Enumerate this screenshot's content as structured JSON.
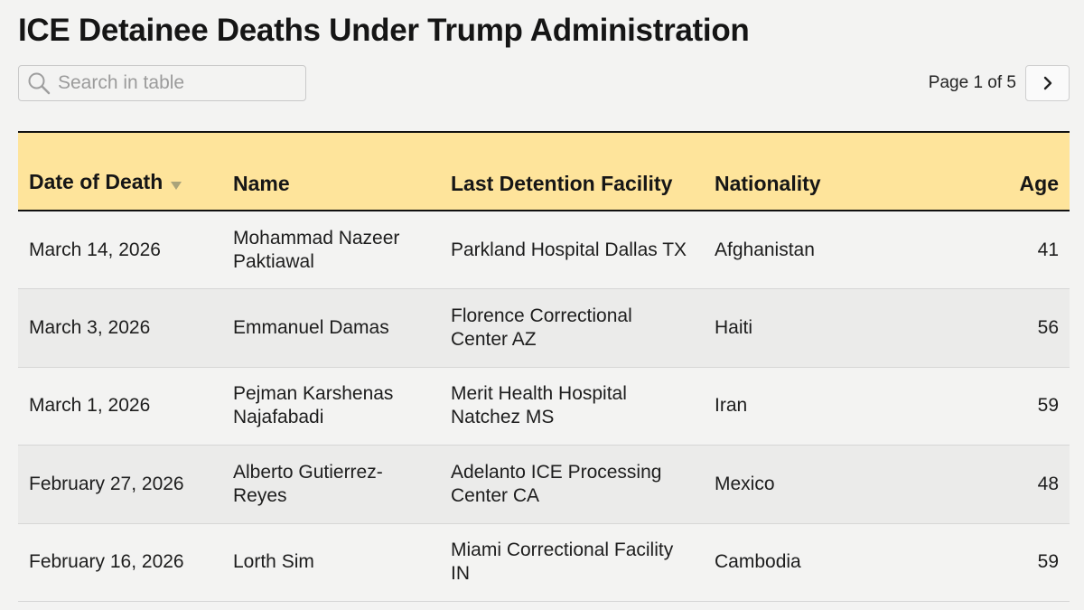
{
  "title": "ICE Detainee Deaths Under Trump Administration",
  "search": {
    "placeholder": "Search in table",
    "value": "",
    "icon": "search-icon"
  },
  "pagination": {
    "label": "Page 1 of 5",
    "next_icon": "chevron-right-icon"
  },
  "table": {
    "columns": [
      {
        "key": "date",
        "label": "Date of Death",
        "sorted": "descending"
      },
      {
        "key": "name",
        "label": "Name"
      },
      {
        "key": "facility",
        "label": "Last Detention Facility"
      },
      {
        "key": "nationality",
        "label": "Nationality"
      },
      {
        "key": "age",
        "label": "Age"
      }
    ],
    "rows": [
      {
        "date": "March 14, 2026",
        "name": "Mohammad Nazeer Paktiawal",
        "facility": "Parkland Hospital Dallas TX",
        "nationality": "Afghanistan",
        "age": "41"
      },
      {
        "date": "March 3, 2026",
        "name": "Emmanuel Damas",
        "facility": "Florence Correctional Center AZ",
        "nationality": "Haiti",
        "age": "56"
      },
      {
        "date": "March 1, 2026",
        "name": "Pejman Karshenas Najafabadi",
        "facility": "Merit Health Hospital Natchez MS",
        "nationality": "Iran",
        "age": "59"
      },
      {
        "date": "February 27, 2026",
        "name": "Alberto Gutierrez-Reyes",
        "facility": "Adelanto ICE Processing Center CA",
        "nationality": "Mexico",
        "age": "48"
      },
      {
        "date": "February 16, 2026",
        "name": "Lorth Sim",
        "facility": "Miami Correctional Facility IN",
        "nationality": "Cambodia",
        "age": "59"
      }
    ]
  },
  "colors": {
    "header_bg": "#fee49b",
    "page_bg": "#f3f3f2",
    "row_alt_bg": "#ebebea"
  }
}
